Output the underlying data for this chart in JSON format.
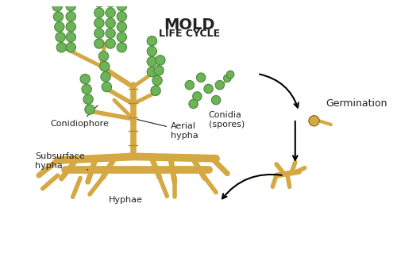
{
  "title": "MOLD",
  "subtitle": "LIFE CYCLE",
  "background_color": "#ffffff",
  "stem_color": "#D4A843",
  "spore_color": "#6DB35A",
  "spore_edge_color": "#4a8a3a",
  "arrow_color": "#222222",
  "text_color": "#222222",
  "labels": {
    "conidiophore": "Conidiophore",
    "aerial_hypha": "Aerial\nhypha",
    "subsurface_hypha": "Subsurface\nhypha",
    "hyphae": "Hyphae",
    "conidia": "Conidia\n(spores)",
    "germination": "Germination"
  },
  "stem_lw": 7,
  "root_lw": 8
}
